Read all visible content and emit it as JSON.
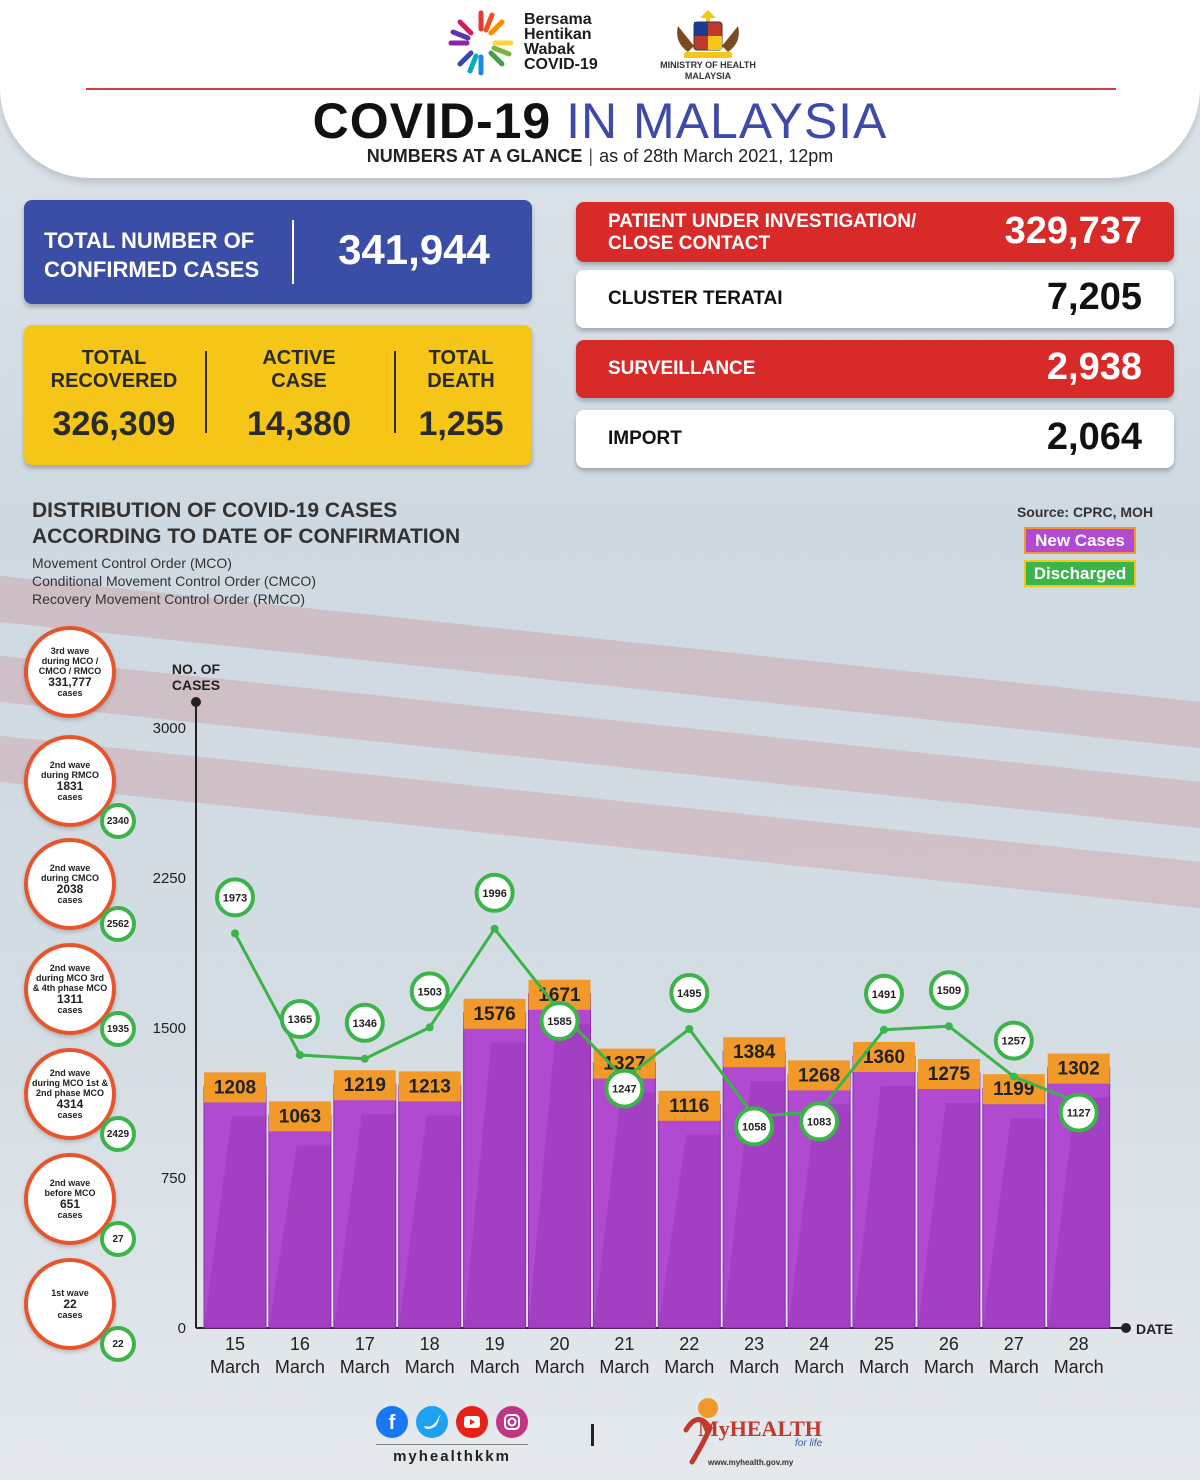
{
  "header": {
    "campaign_lines": [
      "Bersama",
      "Hentikan",
      "Wabak",
      "COVID-19"
    ],
    "ministry_lines": [
      "MINISTRY OF HEALTH",
      "MALAYSIA"
    ],
    "title_part1": "COVID-19",
    "title_part2": "IN MALAYSIA",
    "subtitle_bold": "NUMBERS AT A GLANCE",
    "subtitle_date": "as of 28th March 2021, 12pm"
  },
  "stats": {
    "confirmed_label_lines": [
      "TOTAL NUMBER OF",
      "CONFIRMED CASES"
    ],
    "confirmed_value": "341,944",
    "recovered_label_lines": [
      "TOTAL",
      "RECOVERED"
    ],
    "recovered_value": "326,309",
    "active_label_lines": [
      "ACTIVE",
      "CASE"
    ],
    "active_value": "14,380",
    "death_label_lines": [
      "TOTAL",
      "DEATH"
    ],
    "death_value": "1,255",
    "pui_label_lines": [
      "PATIENT UNDER INVESTIGATION/",
      "CLOSE CONTACT"
    ],
    "pui_value": "329,737",
    "cluster_label": "CLUSTER TERATAI",
    "cluster_value": "7,205",
    "surveillance_label": "SURVEILLANCE",
    "surveillance_value": "2,938",
    "import_label": "IMPORT",
    "import_value": "2,064"
  },
  "chart_header": {
    "title_lines": [
      "DISTRIBUTION OF COVID-19 CASES",
      "ACCORDING TO DATE OF CONFIRMATION"
    ],
    "phase_lines": [
      "Movement Control Order (MCO)",
      "Conditional Movement Control Order (CMCO)",
      "Recovery Movement Control Order (RMCO)"
    ],
    "source": "Source: CPRC, MOH",
    "legend_new": "New Cases",
    "legend_discharged": "Discharged"
  },
  "waves": [
    {
      "lines": [
        "3rd wave",
        "during MCO /",
        "CMCO / RMCO"
      ],
      "number": "331,777",
      "unit": "cases",
      "badge": ""
    },
    {
      "lines": [
        "2nd wave",
        "during RMCO"
      ],
      "number": "1831",
      "unit": "cases",
      "badge": "2340"
    },
    {
      "lines": [
        "2nd wave",
        "during CMCO"
      ],
      "number": "2038",
      "unit": "cases",
      "badge": "2562"
    },
    {
      "lines": [
        "2nd wave",
        "during MCO 3rd",
        "& 4th phase MCO"
      ],
      "number": "1311",
      "unit": "cases",
      "badge": "1935"
    },
    {
      "lines": [
        "2nd wave",
        "during MCO 1st &",
        "2nd phase MCO"
      ],
      "number": "4314",
      "unit": "cases",
      "badge": "2429"
    },
    {
      "lines": [
        "2nd wave",
        "before MCO"
      ],
      "number": "651",
      "unit": "cases",
      "badge": "27"
    },
    {
      "lines": [
        "1st wave"
      ],
      "number": "22",
      "unit": "cases",
      "badge": "22"
    }
  ],
  "chart_data": {
    "type": "bar",
    "ylabel_lines": [
      "NO. OF",
      "CASES"
    ],
    "xlabel": "DATE",
    "ylim": [
      0,
      3000
    ],
    "yticks": [
      0,
      750,
      1500,
      2250,
      3000
    ],
    "categories": [
      "15 March",
      "16 March",
      "17 March",
      "18 March",
      "19 March",
      "20 March",
      "21 March",
      "22 March",
      "23 March",
      "24 March",
      "25 March",
      "26 March",
      "27 March",
      "28 March"
    ],
    "category_day": [
      "15",
      "16",
      "17",
      "18",
      "19",
      "20",
      "21",
      "22",
      "23",
      "24",
      "25",
      "26",
      "27",
      "28"
    ],
    "category_month": "March",
    "series": [
      {
        "name": "New Cases",
        "type": "bar",
        "color": "#b04ad0",
        "label_color": "#f19a2a",
        "values": [
          1208,
          1063,
          1219,
          1213,
          1576,
          1671,
          1327,
          1116,
          1384,
          1268,
          1360,
          1275,
          1199,
          1302
        ]
      },
      {
        "name": "Discharged",
        "type": "line",
        "color": "#3bb449",
        "values": [
          1973,
          1365,
          1346,
          1503,
          1996,
          1585,
          1247,
          1495,
          1058,
          1083,
          1491,
          1509,
          1257,
          1127
        ]
      }
    ],
    "grid": false,
    "legend_position": "top-right"
  },
  "footer": {
    "handle": "myhealthkkm",
    "brand": "MyHEALTH",
    "tagline": "for life",
    "url": "www.myhealth.gov.my",
    "social_icons": [
      "facebook-icon",
      "twitter-icon",
      "youtube-icon",
      "instagram-icon"
    ]
  }
}
